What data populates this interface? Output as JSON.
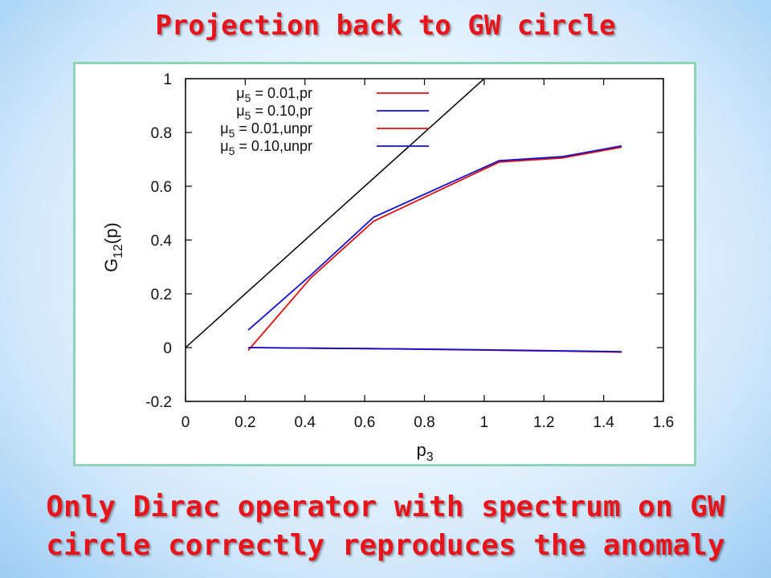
{
  "slide": {
    "title": "Projection back to GW circle",
    "caption_line1": "Only Dirac operator with spectrum on GW",
    "caption_line2": "circle correctly reproduces the anomaly"
  },
  "chart_data": {
    "type": "line",
    "xlabel": "p3",
    "ylabel": "G12(p)",
    "xlim": [
      0,
      1.6
    ],
    "ylim": [
      -0.2,
      1.0
    ],
    "xticks": [
      "0",
      "0.2",
      "0.4",
      "0.6",
      "0.8",
      "1",
      "1.2",
      "1.4",
      "1.6"
    ],
    "yticks": [
      "-0.2",
      "0",
      "0.2",
      "0.4",
      "0.6",
      "0.8",
      "1"
    ],
    "grid": false,
    "legend_position": "top-left",
    "reference_line": {
      "x": [
        0,
        1.6
      ],
      "y": [
        0,
        1.6
      ],
      "color": "#000000"
    },
    "series": [
      {
        "name": "μ5 = 0.01,pr",
        "color": "#e01010",
        "x": [
          0.21,
          0.42,
          0.63,
          0.84,
          1.05,
          1.26,
          1.46
        ],
        "y": [
          -0.01,
          0.26,
          0.47,
          0.58,
          0.69,
          0.705,
          0.745
        ]
      },
      {
        "name": "μ5 = 0.10,pr",
        "color": "#1010d0",
        "x": [
          0.21,
          0.42,
          0.63,
          0.84,
          1.05,
          1.26,
          1.46
        ],
        "y": [
          0.065,
          0.27,
          0.485,
          0.59,
          0.695,
          0.71,
          0.75
        ]
      },
      {
        "name": "μ5 = 0.01,unpr",
        "color": "#e01010",
        "x": [
          0.21,
          0.42,
          0.63,
          0.84,
          1.05,
          1.26,
          1.46
        ],
        "y": [
          0.0,
          -0.002,
          -0.004,
          -0.007,
          -0.01,
          -0.013,
          -0.017
        ]
      },
      {
        "name": "μ5 = 0.10,unpr",
        "color": "#1010d0",
        "x": [
          0.21,
          0.42,
          0.63,
          0.84,
          1.05,
          1.26,
          1.46
        ],
        "y": [
          0.0,
          -0.002,
          -0.004,
          -0.006,
          -0.009,
          -0.012,
          -0.015
        ]
      }
    ]
  }
}
